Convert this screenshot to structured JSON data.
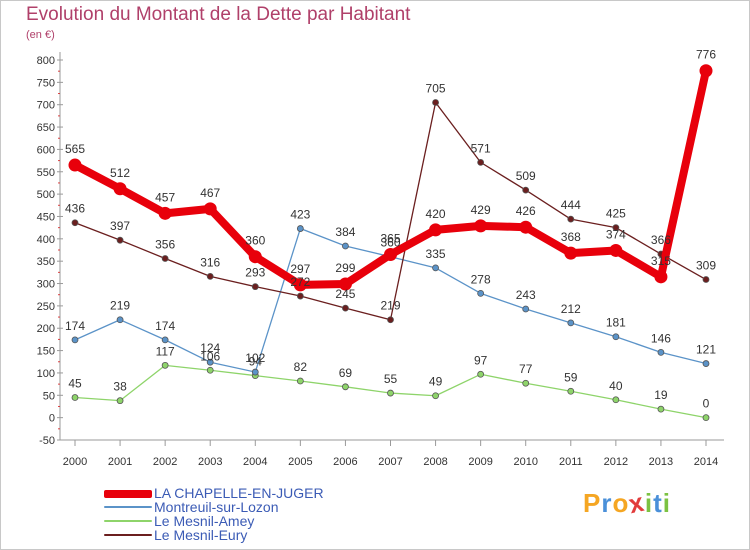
{
  "title": "Evolution du Montant de la Dette par Habitant",
  "subtitle": "(en €)",
  "logo": {
    "text": "Proxiti",
    "letters": [
      {
        "ch": "P",
        "color": "#f5a623"
      },
      {
        "ch": "r",
        "color": "#4a90d9"
      },
      {
        "ch": "o",
        "color": "#f5a623"
      },
      {
        "ch": "x",
        "color": "#e23c3c"
      },
      {
        "ch": "i",
        "color": "#7cc242"
      },
      {
        "ch": "t",
        "color": "#4a90d9"
      },
      {
        "ch": "i",
        "color": "#7cc242"
      }
    ]
  },
  "chart_data": {
    "type": "line",
    "title": "Evolution du Montant de la Dette par Habitant",
    "subtitle": "(en €)",
    "x": [
      "2000",
      "2001",
      "2002",
      "2003",
      "2004",
      "2005",
      "2006",
      "2007",
      "2008",
      "2009",
      "2010",
      "2011",
      "2012",
      "2013",
      "2014"
    ],
    "ylim": [
      -50,
      800
    ],
    "yticks": [
      -50,
      0,
      50,
      100,
      150,
      200,
      250,
      300,
      350,
      400,
      450,
      500,
      550,
      600,
      650,
      700,
      750,
      800
    ],
    "grid": false,
    "legend_position": "bottom-left",
    "series": [
      {
        "name": "LA CHAPELLE-EN-JUGER",
        "color": "#e8000b",
        "values": [
          565,
          512,
          457,
          467,
          360,
          297,
          299,
          365,
          420,
          429,
          426,
          368,
          374,
          315,
          776
        ],
        "labels": [
          "565",
          "512",
          "457",
          "467",
          "360",
          "297",
          "299",
          "365",
          "420",
          "429",
          "426",
          "368",
          "374",
          "315",
          "776"
        ]
      },
      {
        "name": "Montreuil-sur-Lozon",
        "color": "#5b93c8",
        "values": [
          174,
          219,
          174,
          124,
          102,
          423,
          384,
          360,
          335,
          278,
          243,
          212,
          181,
          146,
          121
        ],
        "labels": [
          "174",
          "219",
          "174",
          "124",
          "102",
          "423",
          "384",
          "360",
          "335",
          "278",
          "243",
          "212",
          "181",
          "146",
          "121"
        ]
      },
      {
        "name": "Le Mesnil-Amey",
        "color": "#8ed46a",
        "values": [
          45,
          38,
          117,
          106,
          94,
          82,
          69,
          55,
          49,
          97,
          77,
          59,
          40,
          19,
          0
        ],
        "labels": [
          "45",
          "38",
          "117",
          "106",
          "94",
          "82",
          "69",
          "55",
          "49",
          "97",
          "77",
          "59",
          "40",
          "19",
          "0"
        ]
      },
      {
        "name": "Le Mesnil-Eury",
        "segments": true,
        "color": "#6b1f1f",
        "values": [
          436,
          397,
          356,
          316,
          293,
          272,
          245,
          219,
          705,
          571,
          509,
          444,
          425,
          366,
          309
        ],
        "labels": [
          "436",
          "397",
          "356",
          "316",
          "293",
          "272",
          "245",
          "219",
          "705",
          "571",
          "509",
          "444",
          "425",
          "366",
          "309"
        ]
      }
    ]
  }
}
